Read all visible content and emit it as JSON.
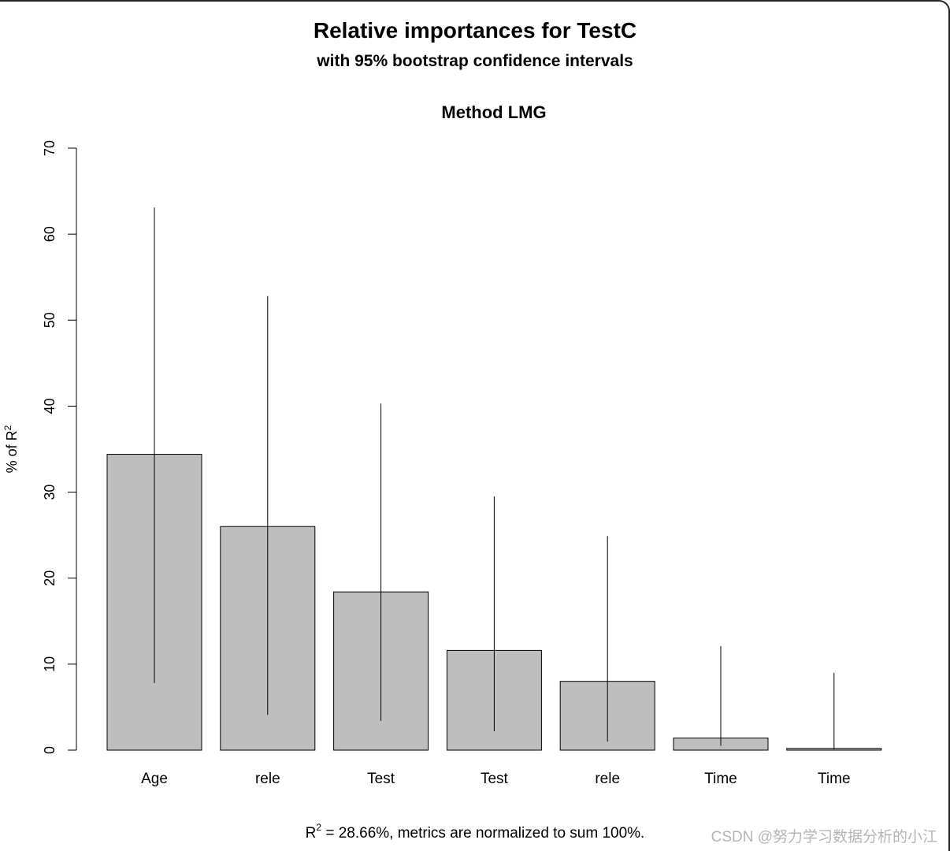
{
  "chart_data": {
    "type": "bar",
    "title": "Relative importances for TestC",
    "subtitle": "with 95% bootstrap confidence intervals",
    "panel_title": "Method LMG",
    "ylabel_main": "% of R",
    "ylabel_sup": "2",
    "categories": [
      "Age",
      "rele",
      "Test",
      "Test",
      "rele",
      "Time",
      "Time"
    ],
    "values": [
      34.4,
      26.0,
      18.4,
      11.6,
      8.0,
      1.4,
      0.2
    ],
    "ci_lower": [
      7.8,
      4.1,
      3.4,
      2.2,
      1.0,
      0.5,
      0.1
    ],
    "ci_upper": [
      63.1,
      52.8,
      40.3,
      29.5,
      24.9,
      12.1,
      9.0
    ],
    "ylim": [
      0,
      70
    ],
    "yticks": [
      0,
      10,
      20,
      30,
      40,
      50,
      60,
      70
    ],
    "bar_color": "#bebebe",
    "footnote": {
      "r_symbol": "R",
      "r_sup": "2",
      "text": " = 28.66%, metrics are normalized to sum 100%."
    }
  },
  "watermark": "CSDN @努力学习数据分析的小江"
}
